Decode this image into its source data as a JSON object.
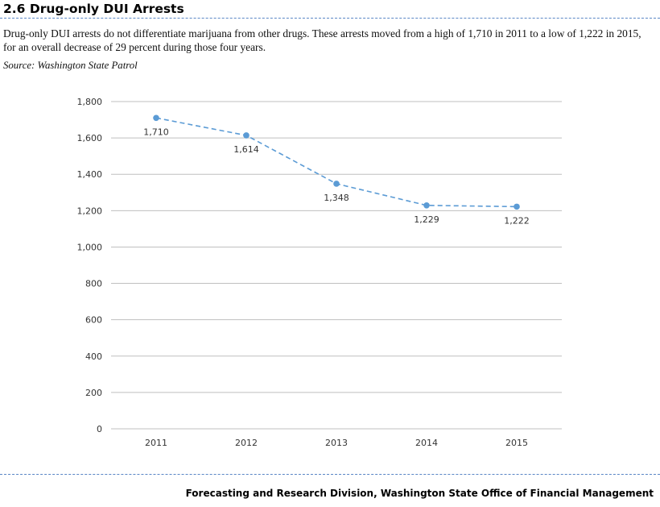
{
  "header": {
    "title": "2.6 Drug-only DUI Arrests",
    "description": "Drug-only DUI arrests do not differentiate marijuana from other drugs. These arrests moved from a high of 1,710 in 2011 to a low of 1,222 in 2015, for an overall decrease of 29 percent during those four years.",
    "source": "Source: Washington State Patrol"
  },
  "footer": {
    "text": "Forecasting and Research Division, Washington State Office of Financial Management"
  },
  "colors": {
    "series": "#5b9bd5",
    "gridline": "#bfbfbf",
    "rule": "#5b87c6"
  },
  "chart_data": {
    "type": "line",
    "title": "",
    "xlabel": "",
    "ylabel": "",
    "categories": [
      "2011",
      "2012",
      "2013",
      "2014",
      "2015"
    ],
    "series": [
      {
        "name": "Drug-only DUI arrests",
        "values": [
          1710,
          1614,
          1348,
          1229,
          1222
        ],
        "labels": [
          "1,710",
          "1,614",
          "1,348",
          "1,229",
          "1,222"
        ]
      }
    ],
    "ylim": [
      0,
      1800
    ],
    "yticks": [
      0,
      200,
      400,
      600,
      800,
      1000,
      1200,
      1400,
      1600,
      1800
    ],
    "ytick_labels": [
      "0",
      "200",
      "400",
      "600",
      "800",
      "1,000",
      "1,200",
      "1,400",
      "1,600",
      "1,800"
    ],
    "line_style": "dashed",
    "grid": true,
    "legend": "none"
  }
}
